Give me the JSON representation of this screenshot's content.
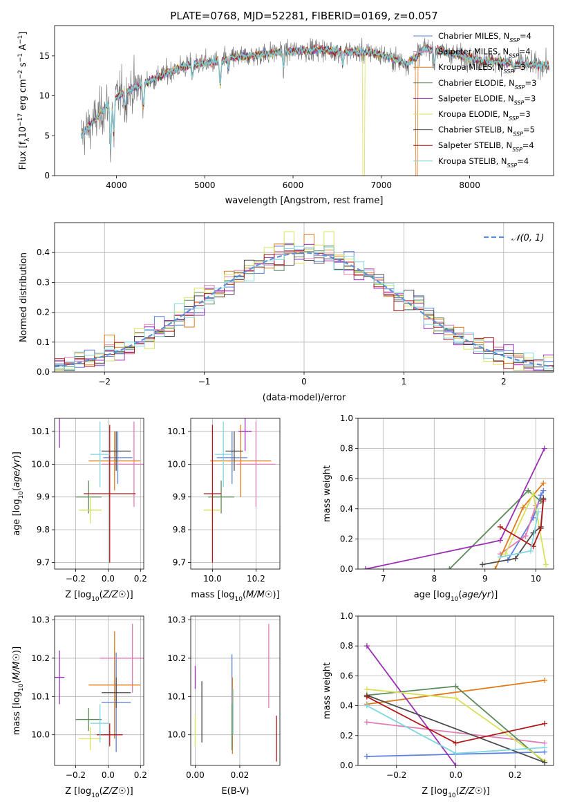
{
  "figure_title": "PLATE=0768, MJD=52281, FIBERID=0169, z=0.057",
  "models": [
    {
      "name": "Chabrier MILES",
      "nssp": "4",
      "color": "#5b7fe0"
    },
    {
      "name": "Salpeter MILES",
      "nssp": "4",
      "color": "#e07bb5"
    },
    {
      "name": "Kroupa MILES",
      "nssp": "3",
      "color": "#e07a18"
    },
    {
      "name": "Chabrier ELODIE",
      "nssp": "3",
      "color": "#5a8a5a"
    },
    {
      "name": "Salpeter ELODIE",
      "nssp": "3",
      "color": "#9a2fb5"
    },
    {
      "name": "Kroupa ELODIE",
      "nssp": "3",
      "color": "#d8e05a"
    },
    {
      "name": "Chabrier STELIB",
      "nssp": "5",
      "color": "#4a4a4a"
    },
    {
      "name": "Salpeter STELIB",
      "nssp": "4",
      "color": "#b01818"
    },
    {
      "name": "Kroupa STELIB",
      "nssp": "4",
      "color": "#7fd6e0"
    }
  ],
  "nssp_label": "N",
  "nssp_sub": "SSP",
  "chart_data": [
    {
      "id": "spectrum",
      "type": "line",
      "xlabel": "wavelength [Angstrom, rest frame]",
      "ylabel": "Flux [f_λ 10^-17 erg cm^-2 s^-1 A^-1]",
      "ylabel_parts": [
        "Flux [f",
        "λ",
        "10",
        "−17",
        " erg cm",
        "−2",
        " s",
        "−1",
        " A",
        "−1",
        "]"
      ],
      "xlim": [
        3300,
        8950
      ],
      "ylim": [
        0,
        18.8
      ],
      "xticks": [
        4000,
        5000,
        6000,
        7000,
        8000
      ],
      "yticks": [
        0,
        5,
        10,
        15
      ],
      "continuum": {
        "x": [
          3600,
          3800,
          3950,
          4100,
          4300,
          4500,
          4700,
          4900,
          5100,
          5300,
          5500,
          5700,
          5900,
          6100,
          6300,
          6500,
          6700,
          6900,
          7100,
          7300,
          7500,
          7700,
          7900,
          8100,
          8300,
          8500,
          8700,
          8900
        ],
        "y": [
          5.0,
          7.5,
          9.5,
          10.5,
          11.5,
          12.5,
          13.5,
          14.0,
          14.2,
          14.8,
          15.0,
          15.3,
          15.5,
          15.7,
          15.8,
          15.6,
          15.5,
          15.4,
          14.8,
          14.0,
          16.0,
          15.5,
          15.0,
          14.5,
          14.3,
          14.1,
          13.9,
          13.8
        ]
      },
      "dips": [
        {
          "x": 3934,
          "depth": 6.0
        },
        {
          "x": 3969,
          "depth": 4.5
        },
        {
          "x": 4101,
          "depth": 2.0
        },
        {
          "x": 4305,
          "depth": 3.0
        },
        {
          "x": 4861,
          "depth": 1.5
        },
        {
          "x": 5175,
          "depth": 3.0
        },
        {
          "x": 5270,
          "depth": 1.2
        },
        {
          "x": 5893,
          "depth": 2.0
        },
        {
          "x": 6563,
          "depth": 1.5
        },
        {
          "x": 7600,
          "depth": 2.0
        },
        {
          "x": 8500,
          "depth": 1.0
        }
      ],
      "model_dropouts": [
        {
          "model": 5,
          "x": 6800
        },
        {
          "model": 2,
          "x": 7400
        }
      ]
    },
    {
      "id": "residuals",
      "type": "histogram",
      "xlabel": "(data-model)/error",
      "ylabel": "Normed distribution",
      "xlim": [
        -2.5,
        2.5
      ],
      "ylim": [
        0,
        0.5
      ],
      "xticks": [
        -2,
        -1,
        0,
        1,
        2
      ],
      "yticks": [
        0.0,
        0.1,
        0.2,
        0.3,
        0.4
      ],
      "bin_width": 0.1,
      "bin_start": -2.5,
      "reference_label": "𝒩(0, 1)",
      "reference_color": "#5b8fd6"
    },
    {
      "id": "age_vs_Z",
      "type": "errorbar",
      "xlabel": "Z [log10(Z/Z☉)]",
      "ylabel": "age  [log10(age/yr)]",
      "xlim": [
        -0.33,
        0.22
      ],
      "ylim": [
        9.68,
        10.14
      ],
      "xticks": [
        -0.2,
        0.0,
        0.2
      ],
      "yticks": [
        9.7,
        9.8,
        9.9,
        10.0,
        10.1
      ],
      "points": [
        {
          "model": 0,
          "x": 0.06,
          "y": 10.02,
          "xerr": 0.09,
          "yerr": 0.08
        },
        {
          "model": 1,
          "x": 0.16,
          "y": 10.0,
          "xerr": 0.2,
          "yerr": 0.13
        },
        {
          "model": 2,
          "x": 0.04,
          "y": 10.01,
          "xerr": 0.16,
          "yerr": 0.09
        },
        {
          "model": 3,
          "x": -0.12,
          "y": 9.9,
          "xerr": 0.08,
          "yerr": 0.05
        },
        {
          "model": 4,
          "x": -0.3,
          "y": 10.1,
          "xerr": 0.0,
          "yerr": 0.05
        },
        {
          "model": 5,
          "x": -0.11,
          "y": 9.86,
          "xerr": 0.07,
          "yerr": 0.04
        },
        {
          "model": 6,
          "x": 0.05,
          "y": 10.04,
          "xerr": 0.09,
          "yerr": 0.06
        },
        {
          "model": 7,
          "x": 0.01,
          "y": 9.91,
          "xerr": 0.16,
          "yerr": 0.21
        },
        {
          "model": 8,
          "x": -0.05,
          "y": 10.03,
          "xerr": 0.06,
          "yerr": 0.1
        }
      ]
    },
    {
      "id": "age_vs_mass",
      "type": "errorbar",
      "xlabel": "mass [log10(M/M☉)]",
      "ylabel": "",
      "xlim": [
        9.9,
        10.31
      ],
      "ylim": [
        9.68,
        10.14
      ],
      "xticks": [
        10.0,
        10.2
      ],
      "yticks": [
        9.7,
        9.8,
        9.9,
        10.0,
        10.1
      ],
      "points": [
        {
          "model": 0,
          "x": 10.09,
          "y": 10.02,
          "xerr": 0.07,
          "yerr": 0.08
        },
        {
          "model": 1,
          "x": 10.2,
          "y": 10.0,
          "xerr": 0.09,
          "yerr": 0.13
        },
        {
          "model": 2,
          "x": 10.13,
          "y": 10.01,
          "xerr": 0.14,
          "yerr": 0.11
        },
        {
          "model": 3,
          "x": 10.04,
          "y": 9.9,
          "xerr": 0.06,
          "yerr": 0.05
        },
        {
          "model": 4,
          "x": 10.15,
          "y": 10.1,
          "xerr": 0.03,
          "yerr": 0.06
        },
        {
          "model": 5,
          "x": 10.0,
          "y": 9.86,
          "xerr": 0.04,
          "yerr": 0.04
        },
        {
          "model": 6,
          "x": 10.1,
          "y": 10.04,
          "xerr": 0.04,
          "yerr": 0.06
        },
        {
          "model": 7,
          "x": 10.0,
          "y": 9.91,
          "xerr": 0.04,
          "yerr": 0.21
        },
        {
          "model": 8,
          "x": 10.05,
          "y": 10.03,
          "xerr": 0.04,
          "yerr": 0.1
        }
      ]
    },
    {
      "id": "weight_vs_age",
      "type": "line",
      "xlabel": "age  [log10(age/yr)]",
      "ylabel": "mass weight",
      "xlim": [
        6.5,
        10.35
      ],
      "ylim": [
        0,
        1.0
      ],
      "xticks": [
        7,
        8,
        9,
        10
      ],
      "yticks": [
        0.0,
        0.2,
        0.4,
        0.6,
        0.8,
        1.0
      ],
      "series": [
        {
          "model": 0,
          "x": [
            9.45,
            9.95,
            10.1,
            10.15
          ],
          "y": [
            0.06,
            0.34,
            0.49,
            0.52
          ]
        },
        {
          "model": 1,
          "x": [
            9.3,
            9.8,
            10.0,
            10.15
          ],
          "y": [
            0.1,
            0.22,
            0.42,
            0.45
          ]
        },
        {
          "model": 2,
          "x": [
            9.2,
            9.75,
            10.15
          ],
          "y": [
            0.0,
            0.41,
            0.57
          ]
        },
        {
          "model": 3,
          "x": [
            8.3,
            9.85,
            10.1
          ],
          "y": [
            0.0,
            0.52,
            0.45
          ]
        },
        {
          "model": 4,
          "x": [
            6.65,
            9.3,
            10.17
          ],
          "y": [
            0.0,
            0.19,
            0.8
          ]
        },
        {
          "model": 5,
          "x": [
            9.4,
            9.95,
            10.2
          ],
          "y": [
            0.1,
            0.5,
            0.03
          ]
        },
        {
          "model": 6,
          "x": [
            8.95,
            9.6,
            9.95,
            10.1,
            10.15
          ],
          "y": [
            0.03,
            0.07,
            0.24,
            0.28,
            0.47
          ]
        },
        {
          "model": 7,
          "x": [
            9.3,
            9.95,
            10.1,
            10.15
          ],
          "y": [
            0.28,
            0.15,
            0.27,
            0.46
          ]
        },
        {
          "model": 8,
          "x": [
            9.3,
            9.9,
            10.05
          ],
          "y": [
            0.08,
            0.12,
            0.38
          ]
        }
      ]
    },
    {
      "id": "mass_vs_Z",
      "type": "errorbar",
      "xlabel": "Z [log10(Z/Z☉)]",
      "ylabel": "mass [log10(M/M☉)]",
      "xlim": [
        -0.33,
        0.22
      ],
      "ylim": [
        9.92,
        10.31
      ],
      "xticks": [
        -0.2,
        0.0,
        0.2
      ],
      "yticks": [
        10.0,
        10.1,
        10.2,
        10.3
      ],
      "points": [
        {
          "model": 0,
          "x": 0.05,
          "y": 10.085,
          "xerr": 0.09,
          "yerr": 0.13
        },
        {
          "model": 1,
          "x": 0.15,
          "y": 10.2,
          "xerr": 0.2,
          "yerr": 0.09
        },
        {
          "model": 2,
          "x": 0.04,
          "y": 10.13,
          "xerr": 0.16,
          "yerr": 0.14
        },
        {
          "model": 3,
          "x": -0.12,
          "y": 10.04,
          "xerr": 0.08,
          "yerr": 0.03
        },
        {
          "model": 4,
          "x": -0.3,
          "y": 10.15,
          "xerr": 0.03,
          "yerr": 0.07
        },
        {
          "model": 5,
          "x": -0.11,
          "y": 9.99,
          "xerr": 0.07,
          "yerr": 0.03
        },
        {
          "model": 6,
          "x": 0.05,
          "y": 10.11,
          "xerr": 0.09,
          "yerr": 0.04
        },
        {
          "model": 7,
          "x": 0.01,
          "y": 10.0,
          "xerr": 0.08,
          "yerr": 0.03
        },
        {
          "model": 8,
          "x": -0.05,
          "y": 10.03,
          "xerr": 0.06,
          "yerr": 0.05
        }
      ]
    },
    {
      "id": "mass_vs_ebv",
      "type": "errorbar",
      "xlabel": "E(B-V)",
      "ylabel": "",
      "xlim": [
        -0.002,
        0.038
      ],
      "ylim": [
        9.92,
        10.31
      ],
      "xticks": [
        0.0,
        0.02
      ],
      "yticks": [
        10.0,
        10.1,
        10.2,
        10.3
      ],
      "points": [
        {
          "model": 0,
          "x": 0.0165,
          "y": 10.09,
          "xerr": 0,
          "yerr": 0.12
        },
        {
          "model": 1,
          "x": 0.033,
          "y": 10.18,
          "xerr": 0,
          "yerr": 0.11
        },
        {
          "model": 2,
          "x": 0.0167,
          "y": 10.05,
          "xerr": 0,
          "yerr": 0.1
        },
        {
          "model": 3,
          "x": 0.0165,
          "y": 10.02,
          "xerr": 0,
          "yerr": 0.06
        },
        {
          "model": 4,
          "x": 0.0,
          "y": 10.15,
          "xerr": 0,
          "yerr": 0.03
        },
        {
          "model": 5,
          "x": 0.0,
          "y": 10.01,
          "xerr": 0,
          "yerr": 0.04
        },
        {
          "model": 6,
          "x": 0.003,
          "y": 10.06,
          "xerr": 0,
          "yerr": 0.08
        },
        {
          "model": 7,
          "x": 0.0365,
          "y": 9.99,
          "xerr": 0,
          "yerr": 0.06
        },
        {
          "model": 8,
          "x": 0.017,
          "y": 10.06,
          "xerr": 0,
          "yerr": 0.06
        }
      ]
    },
    {
      "id": "weight_vs_Z",
      "type": "line",
      "xlabel": "Z [log10(Z/Z☉)]",
      "ylabel": "mass weight",
      "xlim": [
        -0.33,
        0.33
      ],
      "ylim": [
        0,
        1.0
      ],
      "xticks": [
        -0.2,
        0.0,
        0.2
      ],
      "yticks": [
        0.0,
        0.2,
        0.4,
        0.6,
        0.8,
        1.0
      ],
      "series": [
        {
          "model": 0,
          "x": [
            -0.3,
            0.3
          ],
          "y": [
            0.06,
            0.09
          ]
        },
        {
          "model": 1,
          "x": [
            -0.3,
            0.3
          ],
          "y": [
            0.29,
            0.15
          ]
        },
        {
          "model": 2,
          "x": [
            -0.3,
            0.3
          ],
          "y": [
            0.41,
            0.57
          ]
        },
        {
          "model": 3,
          "x": [
            -0.3,
            0.0,
            0.3
          ],
          "y": [
            0.47,
            0.53,
            0.02
          ]
        },
        {
          "model": 4,
          "x": [
            -0.3,
            0.0
          ],
          "y": [
            0.8,
            0.0
          ]
        },
        {
          "model": 5,
          "x": [
            -0.3,
            0.0,
            0.3
          ],
          "y": [
            0.51,
            0.45,
            0.03
          ]
        },
        {
          "model": 6,
          "x": [
            -0.3,
            0.3
          ],
          "y": [
            0.47,
            0.02
          ]
        },
        {
          "model": 7,
          "x": [
            -0.3,
            0.0,
            0.3
          ],
          "y": [
            0.46,
            0.15,
            0.28
          ]
        },
        {
          "model": 8,
          "x": [
            -0.3,
            0.0,
            0.3
          ],
          "y": [
            0.4,
            0.08,
            0.12
          ]
        }
      ]
    }
  ]
}
